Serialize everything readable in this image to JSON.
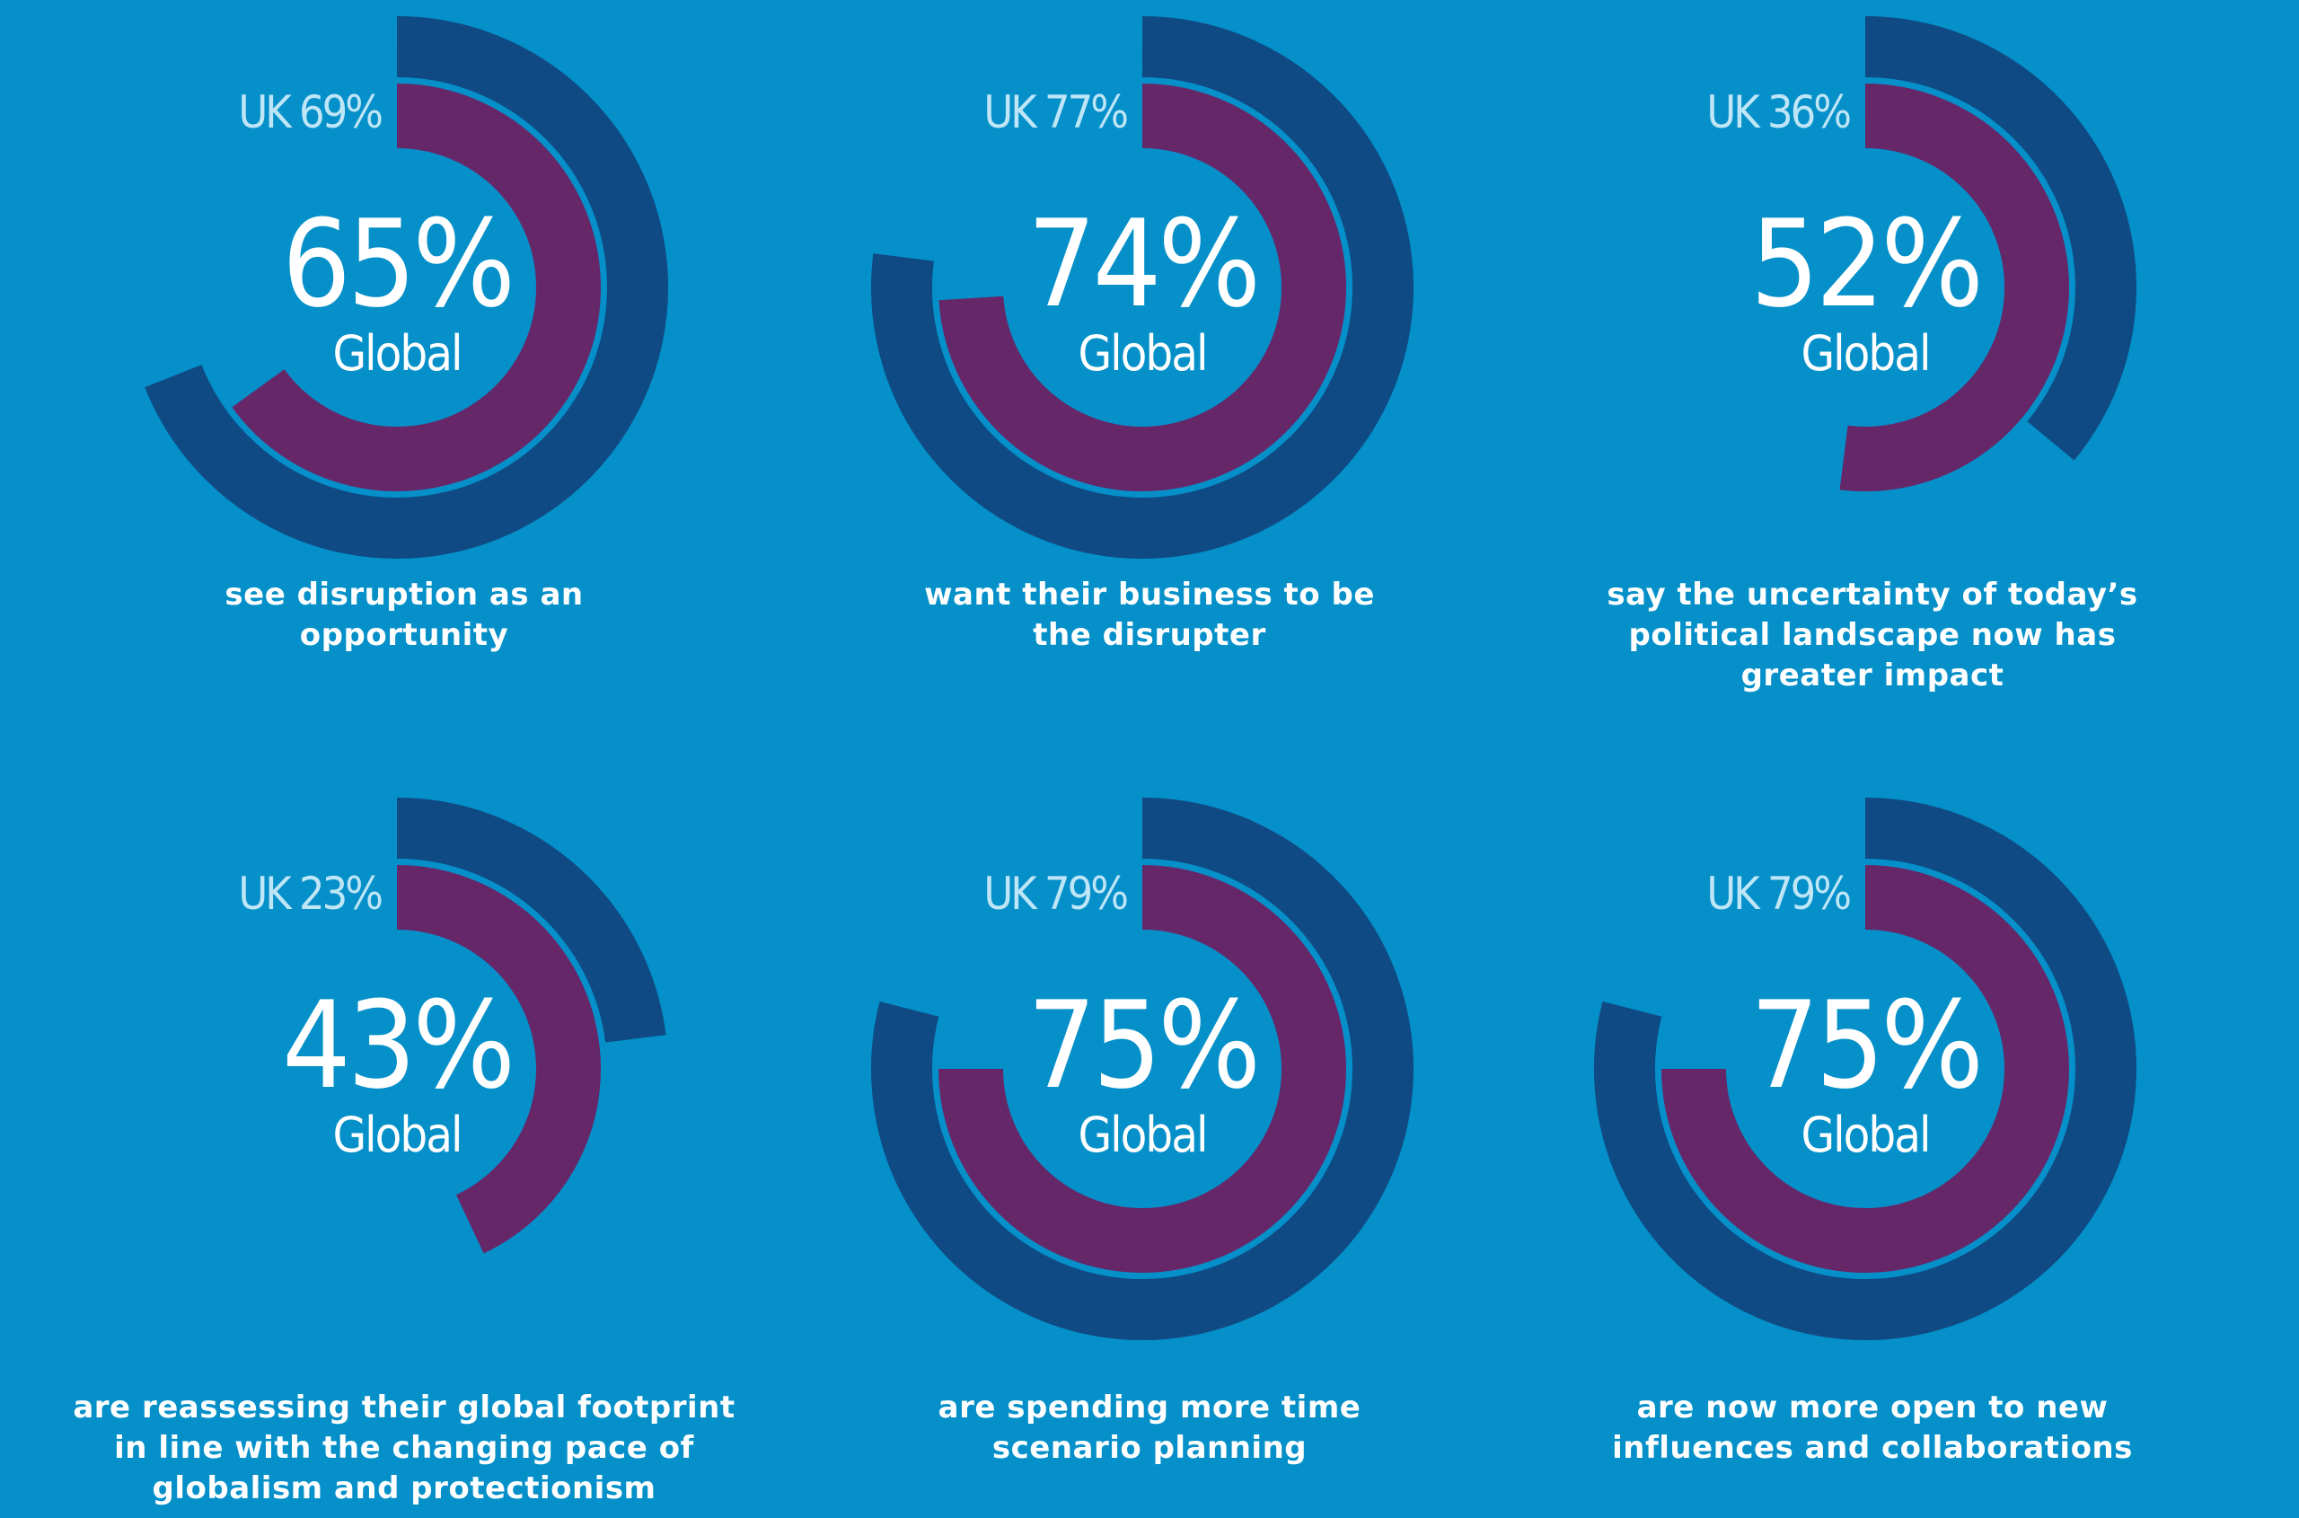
{
  "colors": {
    "background": "#0590c9",
    "uk_ring": "#0f4a84",
    "global_ring": "#662769",
    "text": "#ffffff",
    "uk_text": "#bfe6f7"
  },
  "chart_data": [
    {
      "type": "pie",
      "subtype": "radial-donut",
      "series": [
        {
          "name": "UK",
          "values": [
            69
          ]
        },
        {
          "name": "Global",
          "values": [
            65
          ]
        }
      ],
      "uk_label": "UK 69%",
      "global_value": "65%",
      "global_label": "Global",
      "caption": [
        "see disruption as an",
        "opportunity"
      ]
    },
    {
      "type": "pie",
      "subtype": "radial-donut",
      "series": [
        {
          "name": "UK",
          "values": [
            77
          ]
        },
        {
          "name": "Global",
          "values": [
            74
          ]
        }
      ],
      "uk_label": "UK 77%",
      "global_value": "74%",
      "global_label": "Global",
      "caption": [
        "want their business to be",
        "the disrupter"
      ]
    },
    {
      "type": "pie",
      "subtype": "radial-donut",
      "series": [
        {
          "name": "UK",
          "values": [
            36
          ]
        },
        {
          "name": "Global",
          "values": [
            52
          ]
        }
      ],
      "uk_label": "UK 36%",
      "global_value": "52%",
      "global_label": "Global",
      "caption": [
        "say the uncertainty of today’s",
        "political landscape now has",
        "greater impact"
      ]
    },
    {
      "type": "pie",
      "subtype": "radial-donut",
      "series": [
        {
          "name": "UK",
          "values": [
            23
          ]
        },
        {
          "name": "Global",
          "values": [
            43
          ]
        }
      ],
      "uk_label": "UK 23%",
      "global_value": "43%",
      "global_label": "Global",
      "caption": [
        "are reassessing their global footprint",
        "in line with the changing pace of",
        "globalism and protectionism"
      ]
    },
    {
      "type": "pie",
      "subtype": "radial-donut",
      "series": [
        {
          "name": "UK",
          "values": [
            79
          ]
        },
        {
          "name": "Global",
          "values": [
            75
          ]
        }
      ],
      "uk_label": "UK 79%",
      "global_value": "75%",
      "global_label": "Global",
      "caption": [
        "are spending more time",
        "scenario planning"
      ]
    },
    {
      "type": "pie",
      "subtype": "radial-donut",
      "series": [
        {
          "name": "UK",
          "values": [
            79
          ]
        },
        {
          "name": "Global",
          "values": [
            75
          ]
        }
      ],
      "uk_label": "UK 79%",
      "global_value": "75%",
      "global_label": "Global",
      "caption": [
        "are now more open to new",
        "influences and collaborations"
      ]
    }
  ]
}
